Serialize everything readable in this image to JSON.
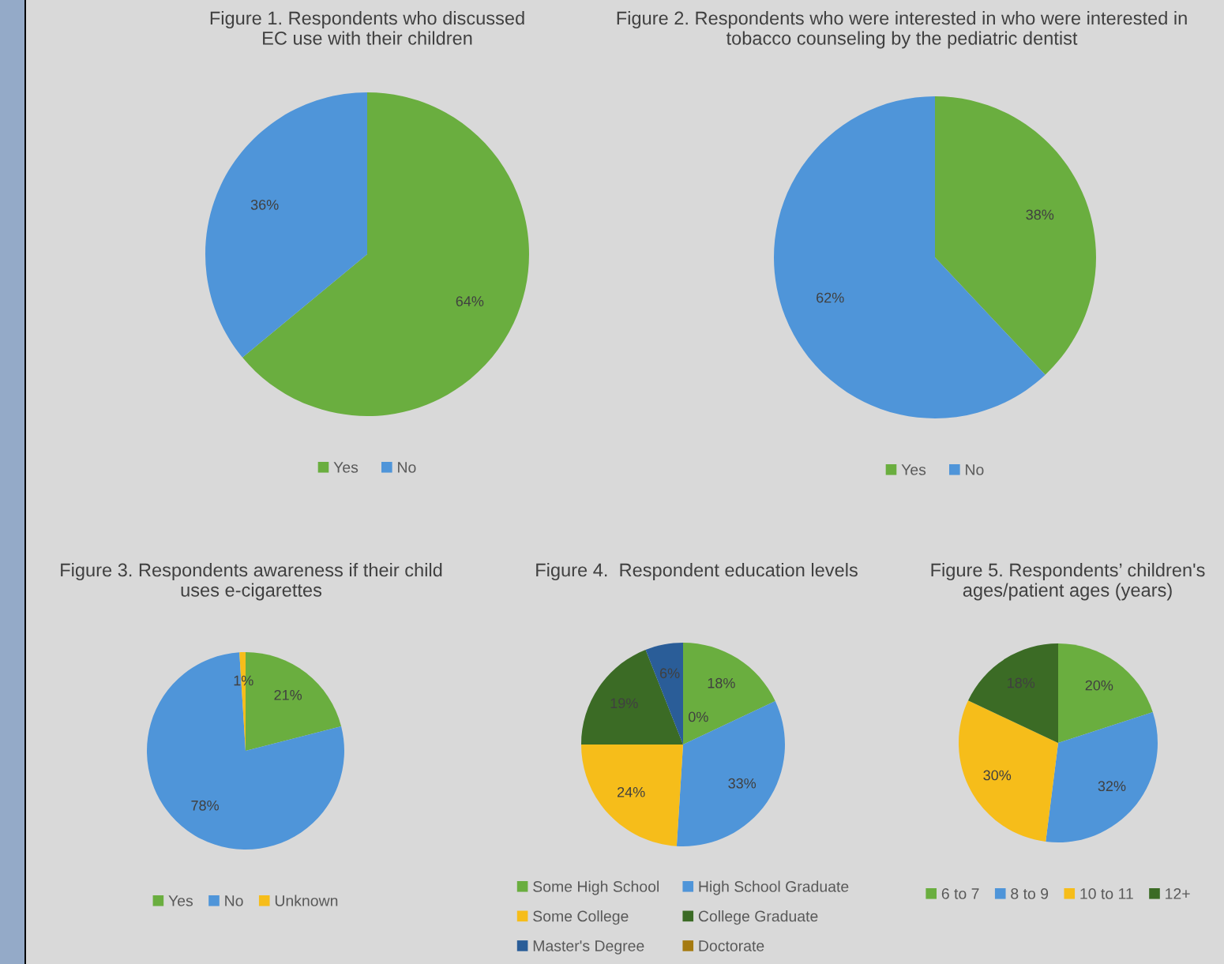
{
  "chart_data": [
    {
      "type": "pie",
      "title": "Figure 1. Respondents who discussed\nEC use with their children",
      "categories": [
        "Yes",
        "No"
      ],
      "values": [
        64,
        36
      ],
      "colors": [
        "#6aae3f",
        "#4f95d9"
      ],
      "value_labels": [
        "64%",
        "36%"
      ],
      "legend": "bottom"
    },
    {
      "type": "pie",
      "title": "Figure 2. Respondents who were interested in who were interested in\ntobacco counseling by the pediatric dentist",
      "categories": [
        "Yes",
        "No"
      ],
      "values": [
        38,
        62
      ],
      "colors": [
        "#6aae3f",
        "#4f95d9"
      ],
      "value_labels": [
        "38%",
        "62%"
      ],
      "legend": "bottom"
    },
    {
      "type": "pie",
      "title": "Figure 3. Respondents awareness if their child\nuses e-cigarettes",
      "categories": [
        "Yes",
        "No",
        "Unknown"
      ],
      "values": [
        21,
        78,
        1
      ],
      "colors": [
        "#6aae3f",
        "#4f95d9",
        "#f6bd1a"
      ],
      "value_labels": [
        "21%",
        "78%",
        "1%"
      ],
      "legend": "bottom"
    },
    {
      "type": "pie",
      "title": "Figure 4.  Respondent education levels",
      "categories": [
        "Some High School",
        "High School Graduate",
        "Some College",
        "College Graduate",
        "Master's Degree",
        "Doctorate"
      ],
      "values": [
        18,
        33,
        24,
        19,
        6,
        0
      ],
      "colors": [
        "#6aae3f",
        "#4f95d9",
        "#f6bd1a",
        "#3b6b25",
        "#2a5d98",
        "#a57a10"
      ],
      "value_labels": [
        "18%",
        "33%",
        "24%",
        "19%",
        "6%",
        "0%"
      ],
      "legend": "bottom"
    },
    {
      "type": "pie",
      "title": "Figure 5. Respondents’ children's\nages/patient ages (years)",
      "categories": [
        "6 to 7",
        "8 to 9",
        "10 to 11",
        "12+"
      ],
      "values": [
        20,
        32,
        30,
        18
      ],
      "colors": [
        "#6aae3f",
        "#4f95d9",
        "#f6bd1a",
        "#3b6b25"
      ],
      "value_labels": [
        "20%",
        "32%",
        "30%",
        "18%"
      ],
      "legend": "bottom"
    }
  ]
}
